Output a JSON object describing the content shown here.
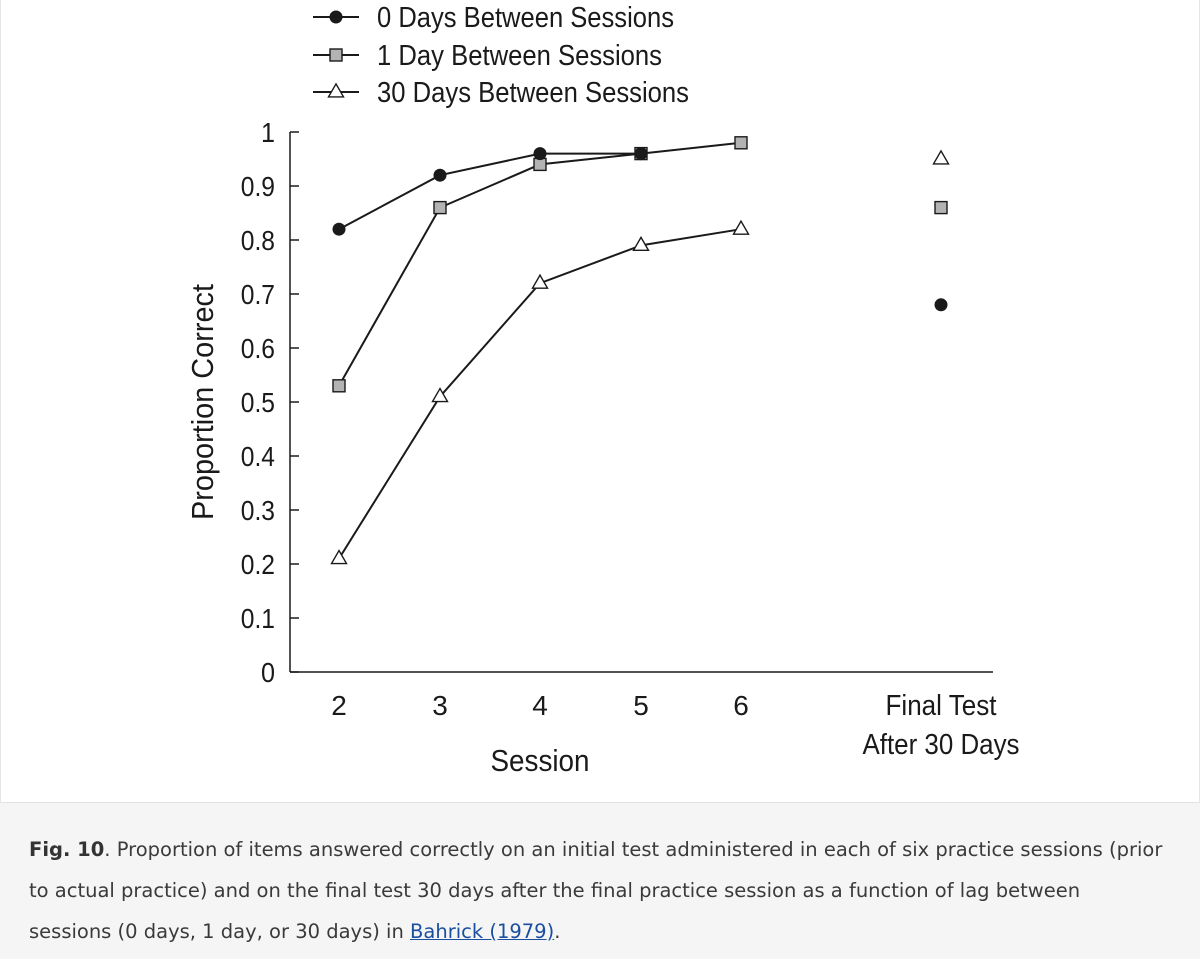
{
  "chart_data": {
    "type": "line",
    "title": "",
    "xlabel": "Session",
    "ylabel": "Proportion Correct",
    "categories": [
      "2",
      "3",
      "4",
      "5",
      "6"
    ],
    "final_category": "Final Test After 30 Days",
    "final_category_lines": [
      "Final Test",
      "After 30 Days"
    ],
    "ylim": [
      0,
      1
    ],
    "yticks": [
      "0",
      "0.1",
      "0.2",
      "0.3",
      "0.4",
      "0.5",
      "0.6",
      "0.7",
      "0.8",
      "0.9",
      "1"
    ],
    "legend_position": "top",
    "series": [
      {
        "name": "0 Days Between Sessions",
        "marker": "circle",
        "values": [
          0.82,
          0.92,
          0.96,
          0.96,
          null
        ],
        "final": 0.68
      },
      {
        "name": "1 Day Between Sessions",
        "marker": "square",
        "values": [
          0.53,
          0.86,
          0.94,
          0.96,
          0.98
        ],
        "final": 0.86
      },
      {
        "name": "30 Days Between Sessions",
        "marker": "triangle",
        "values": [
          0.21,
          0.51,
          0.72,
          0.79,
          0.82
        ],
        "final": 0.95
      }
    ]
  },
  "caption": {
    "label": "Fig. 10",
    "text": ". Proportion of items answered correctly on an initial test administered in each of six practice sessions (prior to actual practice) and on the final test 30 days after the final practice session as a function of lag between sessions (0 days, 1 day, or 30 days) in ",
    "link_text": "Bahrick (1979)",
    "end": "."
  },
  "colors": {
    "ink": "#1a1a1a",
    "square_fill": "#b3b3b3",
    "caption_bg": "#f5f5f5",
    "link": "#1a4fa0"
  }
}
